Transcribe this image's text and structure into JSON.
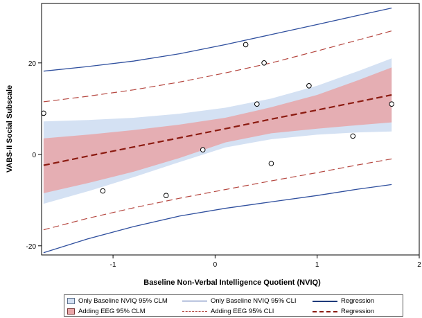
{
  "chart_data": {
    "type": "scatter",
    "title": "",
    "xlabel": "Baseline Non-Verbal Intelligence Quotient (NVIQ)",
    "ylabel": "VABS-II Social Subscale",
    "xlim": [
      -1.7,
      2.0
    ],
    "ylim": [
      -22,
      33
    ],
    "x_ticks": [
      -1,
      0,
      1,
      2
    ],
    "y_ticks": [
      -20,
      0,
      20
    ],
    "x_tick_labels": [
      "-1",
      "0",
      "1",
      "2"
    ],
    "y_tick_labels": [
      "-20",
      "0",
      "20"
    ],
    "grid": false,
    "legend_position": "bottom",
    "points": {
      "x": [
        -1.68,
        -1.1,
        -0.48,
        -0.12,
        0.3,
        0.41,
        0.48,
        0.55,
        0.92,
        1.35,
        1.73
      ],
      "y": [
        9,
        -8,
        -9,
        1,
        24,
        11,
        20,
        -2,
        15,
        4,
        11
      ]
    },
    "fit_x": [
      -1.68,
      -1.25,
      -0.8,
      -0.35,
      0.1,
      0.55,
      1.0,
      1.4,
      1.73
    ],
    "regression": [
      -2.4,
      -0.4,
      1.6,
      3.6,
      5.6,
      7.7,
      9.7,
      11.5,
      13.0
    ],
    "baseline_clm_upper": [
      7.2,
      7.5,
      8.0,
      8.9,
      10.2,
      12.2,
      15.0,
      18.2,
      21.0
    ],
    "baseline_clm_lower": [
      -10.8,
      -8.1,
      -5.0,
      -1.7,
      1.5,
      3.3,
      4.3,
      4.8,
      5.0
    ],
    "eeg_clm_upper": [
      3.5,
      4.3,
      5.3,
      6.5,
      8.0,
      10.3,
      13.0,
      16.2,
      19.0
    ],
    "eeg_clm_lower": [
      -8.5,
      -6.3,
      -3.8,
      -0.8,
      2.6,
      4.6,
      5.6,
      6.4,
      7.0
    ],
    "baseline_cli_upper": [
      18.2,
      19.2,
      20.4,
      22.0,
      24.0,
      26.2,
      28.4,
      30.4,
      32.0
    ],
    "baseline_cli_lower": [
      -21.5,
      -18.5,
      -15.8,
      -13.5,
      -11.8,
      -10.4,
      -9.0,
      -7.6,
      -6.6
    ],
    "eeg_cli_upper": [
      11.5,
      12.7,
      14.1,
      15.8,
      17.8,
      20.0,
      22.6,
      25.0,
      27.0
    ],
    "eeg_cli_lower": [
      -16.5,
      -14.0,
      -11.7,
      -9.6,
      -7.7,
      -5.8,
      -4.0,
      -2.3,
      -1.0
    ],
    "legend": [
      {
        "label": "Only Baseline NVIQ 95% CLM",
        "kind": "band",
        "color": "#d4e1f3",
        "border": "#5b6f8a"
      },
      {
        "label": "Only Baseline NVIQ 95% CLI",
        "kind": "line",
        "color": "#2f4f9e",
        "dash": "solid"
      },
      {
        "label": "Regression",
        "kind": "line",
        "color": "#1e3a7a",
        "dash": "solid"
      },
      {
        "label": "Adding EEG 95% CLM",
        "kind": "band",
        "color": "#e8a5a7",
        "border": "#7a3a3a"
      },
      {
        "label": "Adding EEG 95% CLI",
        "kind": "line",
        "color": "#b5463f",
        "dash": "dashed"
      },
      {
        "label": "Regression",
        "kind": "line",
        "color": "#8b1a10",
        "dash": "dashed"
      }
    ],
    "colors": {
      "baseline_clm": "#d4e1f3",
      "eeg_clm": "#e8a5a7",
      "baseline_cli": "#2f4f9e",
      "eeg_cli": "#b5463f",
      "regression": "#8b1a10",
      "point_fill": "#ffffff",
      "point_stroke": "#000000"
    }
  }
}
